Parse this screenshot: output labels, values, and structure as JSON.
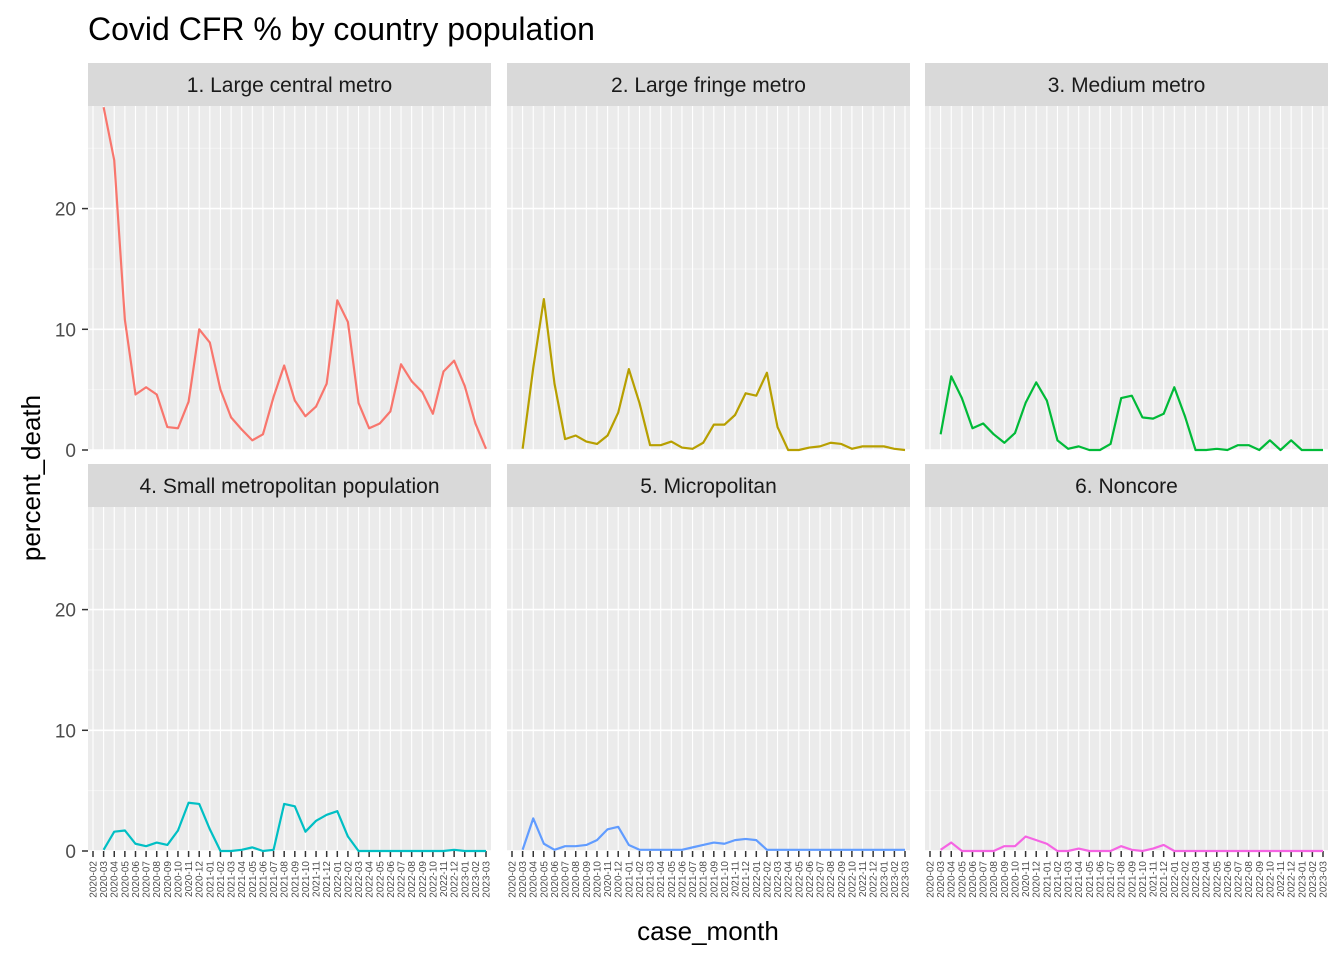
{
  "chart_data": {
    "type": "line",
    "title": "Covid CFR % by country population",
    "xlabel": "case_month",
    "ylabel": "percent_death",
    "ylim": [
      0,
      28.5
    ],
    "y_ticks": [
      0,
      10,
      20
    ],
    "x_ticks": [
      "2020-02",
      "2020-03",
      "2020-04",
      "2020-05",
      "2020-06",
      "2020-07",
      "2020-08",
      "2020-09",
      "2020-10",
      "2020-11",
      "2020-12",
      "2021-01",
      "2021-02",
      "2021-03",
      "2021-04",
      "2021-05",
      "2021-06",
      "2021-07",
      "2021-08",
      "2021-09",
      "2021-10",
      "2021-11",
      "2021-12",
      "2022-01",
      "2022-02",
      "2022-03",
      "2022-04",
      "2022-05",
      "2022-06",
      "2022-07",
      "2022-08",
      "2022-09",
      "2022-10",
      "2022-11",
      "2022-12",
      "2023-01",
      "2023-02",
      "2023-03"
    ],
    "grid": true,
    "legend": "none",
    "panels": [
      {
        "name": "1. Large central metro",
        "color": "#F8766D",
        "x": [
          "2020-03",
          "2020-04",
          "2020-05",
          "2020-06",
          "2020-07",
          "2020-08",
          "2020-09",
          "2020-10",
          "2020-11",
          "2020-12",
          "2021-01",
          "2021-02",
          "2021-03",
          "2021-04",
          "2021-05",
          "2021-06",
          "2021-07",
          "2021-08",
          "2021-09",
          "2021-10",
          "2021-11",
          "2021-12",
          "2022-01",
          "2022-02",
          "2022-03",
          "2022-04",
          "2022-05",
          "2022-06",
          "2022-07",
          "2022-08",
          "2022-09",
          "2022-10",
          "2022-11",
          "2022-12",
          "2023-01",
          "2023-02",
          "2023-03"
        ],
        "values": [
          28.4,
          24.0,
          10.8,
          4.6,
          5.2,
          4.6,
          1.9,
          1.8,
          4.0,
          10.0,
          8.9,
          5.0,
          2.7,
          1.7,
          0.8,
          1.3,
          4.4,
          7.0,
          4.1,
          2.8,
          3.6,
          5.5,
          12.4,
          10.6,
          3.9,
          1.8,
          2.2,
          3.2,
          7.1,
          5.7,
          4.8,
          3.0,
          6.5,
          7.4,
          5.3,
          2.2,
          0.1
        ]
      },
      {
        "name": "2. Large fringe metro",
        "color": "#B79F00",
        "x": [
          "2020-03",
          "2020-04",
          "2020-05",
          "2020-06",
          "2020-07",
          "2020-08",
          "2020-09",
          "2020-10",
          "2020-11",
          "2020-12",
          "2021-01",
          "2021-02",
          "2021-03",
          "2021-04",
          "2021-05",
          "2021-06",
          "2021-07",
          "2021-08",
          "2021-09",
          "2021-10",
          "2021-11",
          "2021-12",
          "2022-01",
          "2022-02",
          "2022-03",
          "2022-04",
          "2022-05",
          "2022-06",
          "2022-07",
          "2022-08",
          "2022-09",
          "2022-10",
          "2022-11",
          "2022-12",
          "2023-01",
          "2023-02",
          "2023-03"
        ],
        "values": [
          0.1,
          6.8,
          12.5,
          5.5,
          0.9,
          1.2,
          0.7,
          0.5,
          1.2,
          3.1,
          6.7,
          3.9,
          0.4,
          0.4,
          0.7,
          0.2,
          0.1,
          0.6,
          2.1,
          2.1,
          2.9,
          4.7,
          4.5,
          6.4,
          1.9,
          0.0,
          0.0,
          0.2,
          0.3,
          0.6,
          0.5,
          0.1,
          0.3,
          0.3,
          0.3,
          0.1,
          0.0
        ]
      },
      {
        "name": "3. Medium metro",
        "color": "#00BA38",
        "x": [
          "2020-03",
          "2020-04",
          "2020-05",
          "2020-06",
          "2020-07",
          "2020-08",
          "2020-09",
          "2020-10",
          "2020-11",
          "2020-12",
          "2021-01",
          "2021-02",
          "2021-03",
          "2021-04",
          "2021-05",
          "2021-06",
          "2021-07",
          "2021-08",
          "2021-09",
          "2021-10",
          "2021-11",
          "2021-12",
          "2022-01",
          "2022-02",
          "2022-03",
          "2022-04",
          "2022-05",
          "2022-06",
          "2022-07",
          "2022-08",
          "2022-09",
          "2022-10",
          "2022-11",
          "2022-12",
          "2023-01",
          "2023-02",
          "2023-03"
        ],
        "values": [
          1.3,
          6.1,
          4.3,
          1.8,
          2.2,
          1.3,
          0.6,
          1.4,
          3.9,
          5.6,
          4.1,
          0.8,
          0.1,
          0.3,
          0.0,
          0.0,
          0.5,
          4.3,
          4.5,
          2.7,
          2.6,
          3.0,
          5.2,
          2.8,
          0.0,
          0.0,
          0.1,
          0.0,
          0.4,
          0.4,
          0.0,
          0.8,
          0.0,
          0.8,
          0.0,
          0.0,
          0.0
        ]
      },
      {
        "name": "4. Small metropolitan population",
        "color": "#00BFC4",
        "x": [
          "2020-03",
          "2020-04",
          "2020-05",
          "2020-06",
          "2020-07",
          "2020-08",
          "2020-09",
          "2020-10",
          "2020-11",
          "2020-12",
          "2021-01",
          "2021-02",
          "2021-03",
          "2021-04",
          "2021-05",
          "2021-06",
          "2021-07",
          "2021-08",
          "2021-09",
          "2021-10",
          "2021-11",
          "2021-12",
          "2022-01",
          "2022-02",
          "2022-03",
          "2022-04",
          "2022-05",
          "2022-06",
          "2022-07",
          "2022-08",
          "2022-09",
          "2022-10",
          "2022-11",
          "2022-12",
          "2023-01",
          "2023-02",
          "2023-03"
        ],
        "values": [
          0.1,
          1.6,
          1.7,
          0.6,
          0.4,
          0.7,
          0.5,
          1.7,
          4.0,
          3.9,
          1.8,
          0.0,
          0.0,
          0.1,
          0.3,
          0.0,
          0.1,
          3.9,
          3.7,
          1.6,
          2.5,
          3.0,
          3.3,
          1.2,
          0.0,
          0.0,
          0.0,
          0.0,
          0.0,
          0.0,
          0.0,
          0.0,
          0.0,
          0.1,
          0.0,
          0.0,
          0.0
        ]
      },
      {
        "name": "5. Micropolitan",
        "color": "#619CFF",
        "x": [
          "2020-03",
          "2020-04",
          "2020-05",
          "2020-06",
          "2020-07",
          "2020-08",
          "2020-09",
          "2020-10",
          "2020-11",
          "2020-12",
          "2021-01",
          "2021-02",
          "2021-03",
          "2021-04",
          "2021-05",
          "2021-06",
          "2021-07",
          "2021-08",
          "2021-09",
          "2021-10",
          "2021-11",
          "2021-12",
          "2022-01",
          "2022-02",
          "2022-03",
          "2022-04",
          "2022-05",
          "2022-06",
          "2022-07",
          "2022-08",
          "2022-09",
          "2022-10",
          "2022-11",
          "2022-12",
          "2023-01",
          "2023-02",
          "2023-03"
        ],
        "values": [
          0.1,
          2.7,
          0.6,
          0.1,
          0.4,
          0.4,
          0.5,
          0.9,
          1.8,
          2.0,
          0.5,
          0.1,
          0.1,
          0.1,
          0.1,
          0.1,
          0.3,
          0.5,
          0.7,
          0.6,
          0.9,
          1.0,
          0.9,
          0.1,
          0.1,
          0.1,
          0.1,
          0.1,
          0.1,
          0.1,
          0.1,
          0.1,
          0.1,
          0.1,
          0.1,
          0.1,
          0.1
        ]
      },
      {
        "name": "6. Noncore",
        "color": "#F564E3",
        "x": [
          "2020-03",
          "2020-04",
          "2020-05",
          "2020-06",
          "2020-07",
          "2020-08",
          "2020-09",
          "2020-10",
          "2020-11",
          "2020-12",
          "2021-01",
          "2021-02",
          "2021-03",
          "2021-04",
          "2021-05",
          "2021-06",
          "2021-07",
          "2021-08",
          "2021-09",
          "2021-10",
          "2021-11",
          "2021-12",
          "2022-01",
          "2022-02",
          "2022-03",
          "2022-04",
          "2022-05",
          "2022-06",
          "2022-07",
          "2022-08",
          "2022-09",
          "2022-10",
          "2022-11",
          "2022-12",
          "2023-01",
          "2023-02",
          "2023-03"
        ],
        "values": [
          0.1,
          0.7,
          0.0,
          0.0,
          0.0,
          0.0,
          0.4,
          0.4,
          1.2,
          0.9,
          0.6,
          0.0,
          0.0,
          0.2,
          0.0,
          0.0,
          0.0,
          0.4,
          0.1,
          0.0,
          0.2,
          0.5,
          0.0,
          0.0,
          0.0,
          0.0,
          0.0,
          0.0,
          0.0,
          0.0,
          0.0,
          0.0,
          0.0,
          0.0,
          0.0,
          0.0,
          0.0
        ]
      }
    ]
  }
}
